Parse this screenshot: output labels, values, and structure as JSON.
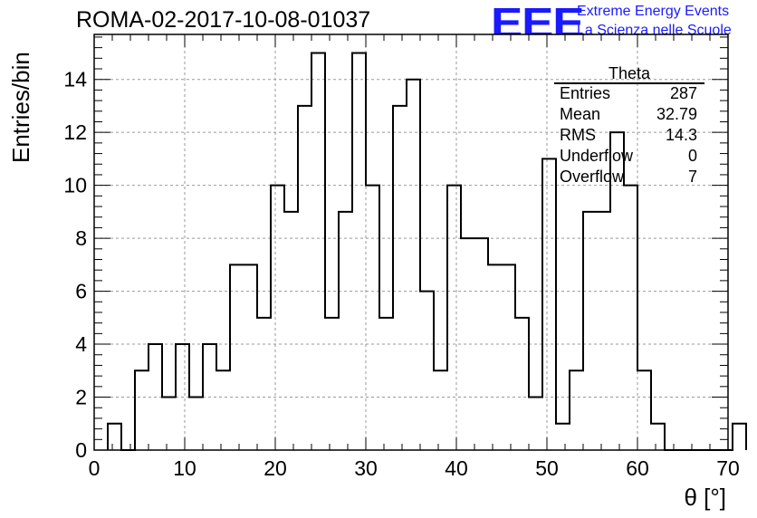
{
  "header": {
    "title": "ROMA-02-2017-10-08-01037",
    "logo_text": "EEE",
    "logo_line1": "Extreme Energy Events",
    "logo_line2": "La Scienza nelle Scuole"
  },
  "stats": {
    "name": "Theta",
    "rows": [
      {
        "key": "Entries",
        "value": "287"
      },
      {
        "key": "Mean",
        "value": "32.79"
      },
      {
        "key": "RMS",
        "value": "14.3"
      },
      {
        "key": "Underflow",
        "value": "0"
      },
      {
        "key": "Overflow",
        "value": "7"
      }
    ]
  },
  "chart_data": {
    "type": "bar",
    "histogram": true,
    "title": "ROMA-02-2017-10-08-01037",
    "xlabel": "θ [°]",
    "ylabel": "Entries/bin",
    "xlim": [
      0,
      70
    ],
    "ylim": [
      0,
      15.7
    ],
    "bin_width": 1.5,
    "bin_edges_start": 1.5,
    "values": [
      1,
      0,
      3,
      4,
      2,
      4,
      2,
      4,
      3,
      7,
      7,
      5,
      10,
      9,
      13,
      15,
      5,
      9,
      15,
      10,
      5,
      13,
      14,
      6,
      3,
      10,
      8,
      8,
      7,
      7,
      5,
      2,
      11,
      1,
      3,
      9,
      9,
      12,
      10,
      3,
      1,
      0,
      0,
      0,
      0,
      0,
      1
    ],
    "xticks": [
      0,
      10,
      20,
      30,
      40,
      50,
      60,
      70
    ],
    "yticks": [
      0,
      2,
      4,
      6,
      8,
      10,
      12,
      14
    ],
    "grid": true,
    "legend": "top-right statistics box",
    "line_color": "#000000",
    "grid_color": "#999999"
  }
}
